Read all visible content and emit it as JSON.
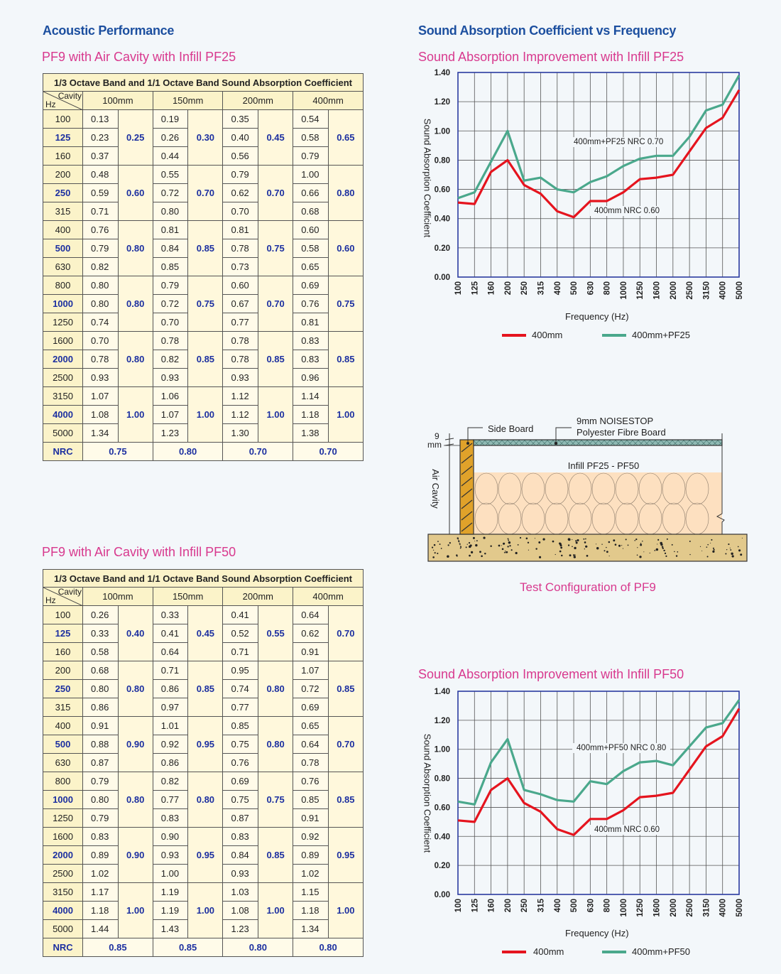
{
  "left": {
    "heading": "Acoustic Performance",
    "tables": [
      {
        "subtitle": "PF9 with Air Cavity with Infill PF25",
        "title": "1/3 Octave Band and 1/1 Octave Band Sound Absorption Coefficient",
        "corner_top": "Cavity",
        "corner_bottom": "Hz",
        "cavities": [
          "100mm",
          "150mm",
          "200mm",
          "400mm"
        ],
        "frequencies": [
          "100",
          "125",
          "160",
          "200",
          "250",
          "315",
          "400",
          "500",
          "630",
          "800",
          "1000",
          "1250",
          "1600",
          "2000",
          "2500",
          "3150",
          "4000",
          "5000"
        ],
        "third_octave": [
          [
            "0.13",
            "0.23",
            "0.37",
            "0.48",
            "0.59",
            "0.71",
            "0.76",
            "0.79",
            "0.82",
            "0.80",
            "0.80",
            "0.74",
            "0.70",
            "0.78",
            "0.93",
            "1.07",
            "1.08",
            "1.34"
          ],
          [
            "0.19",
            "0.26",
            "0.44",
            "0.55",
            "0.72",
            "0.80",
            "0.81",
            "0.84",
            "0.85",
            "0.79",
            "0.72",
            "0.70",
            "0.78",
            "0.82",
            "0.93",
            "1.06",
            "1.07",
            "1.23"
          ],
          [
            "0.35",
            "0.40",
            "0.56",
            "0.79",
            "0.62",
            "0.70",
            "0.81",
            "0.78",
            "0.73",
            "0.60",
            "0.67",
            "0.77",
            "0.78",
            "0.78",
            "0.93",
            "1.12",
            "1.12",
            "1.30"
          ],
          [
            "0.54",
            "0.58",
            "0.79",
            "1.00",
            "0.66",
            "0.68",
            "0.60",
            "0.58",
            "0.65",
            "0.69",
            "0.76",
            "0.81",
            "0.83",
            "0.83",
            "0.96",
            "1.14",
            "1.18",
            "1.38"
          ]
        ],
        "octave": [
          [
            "0.25",
            "0.60",
            "0.80",
            "0.80",
            "0.80",
            "1.00"
          ],
          [
            "0.30",
            "0.70",
            "0.85",
            "0.75",
            "0.85",
            "1.00"
          ],
          [
            "0.45",
            "0.70",
            "0.75",
            "0.70",
            "0.85",
            "1.00"
          ],
          [
            "0.65",
            "0.80",
            "0.60",
            "0.75",
            "0.85",
            "1.00"
          ]
        ],
        "nrc_label": "NRC",
        "nrc": [
          "0.75",
          "0.80",
          "0.70",
          "0.70"
        ]
      },
      {
        "subtitle": "PF9 with Air Cavity with Infill PF50",
        "title": "1/3 Octave Band and 1/1 Octave Band Sound Absorption Coefficient",
        "corner_top": "Cavity",
        "corner_bottom": "Hz",
        "cavities": [
          "100mm",
          "150mm",
          "200mm",
          "400mm"
        ],
        "frequencies": [
          "100",
          "125",
          "160",
          "200",
          "250",
          "315",
          "400",
          "500",
          "630",
          "800",
          "1000",
          "1250",
          "1600",
          "2000",
          "2500",
          "3150",
          "4000",
          "5000"
        ],
        "third_octave": [
          [
            "0.26",
            "0.33",
            "0.58",
            "0.68",
            "0.80",
            "0.86",
            "0.91",
            "0.88",
            "0.87",
            "0.79",
            "0.80",
            "0.79",
            "0.83",
            "0.89",
            "1.02",
            "1.17",
            "1.18",
            "1.44"
          ],
          [
            "0.33",
            "0.41",
            "0.64",
            "0.71",
            "0.86",
            "0.97",
            "1.01",
            "0.92",
            "0.86",
            "0.82",
            "0.77",
            "0.83",
            "0.90",
            "0.93",
            "1.00",
            "1.19",
            "1.19",
            "1.43"
          ],
          [
            "0.41",
            "0.52",
            "0.71",
            "0.95",
            "0.74",
            "0.77",
            "0.85",
            "0.75",
            "0.76",
            "0.69",
            "0.75",
            "0.87",
            "0.83",
            "0.84",
            "0.93",
            "1.03",
            "1.08",
            "1.23"
          ],
          [
            "0.64",
            "0.62",
            "0.91",
            "1.07",
            "0.72",
            "0.69",
            "0.65",
            "0.64",
            "0.78",
            "0.76",
            "0.85",
            "0.91",
            "0.92",
            "0.89",
            "1.02",
            "1.15",
            "1.18",
            "1.34"
          ]
        ],
        "octave": [
          [
            "0.40",
            "0.80",
            "0.90",
            "0.80",
            "0.90",
            "1.00"
          ],
          [
            "0.45",
            "0.85",
            "0.95",
            "0.80",
            "0.95",
            "1.00"
          ],
          [
            "0.55",
            "0.80",
            "0.80",
            "0.75",
            "0.85",
            "1.00"
          ],
          [
            "0.70",
            "0.85",
            "0.70",
            "0.85",
            "0.95",
            "1.00"
          ]
        ],
        "nrc_label": "NRC",
        "nrc": [
          "0.85",
          "0.85",
          "0.80",
          "0.80"
        ]
      }
    ]
  },
  "right": {
    "heading": "Sound Absorption Coefficient vs Frequency",
    "diagram": {
      "side_board": "Side Board",
      "board_line1": "9mm NOISESTOP",
      "board_line2": "Polyester Fibre Board",
      "thickness_value": "9",
      "thickness_unit": "mm",
      "air_cavity": "Air Cavity",
      "infill": "Infill PF25 - PF50",
      "caption": "Test Configuration of PF9"
    }
  },
  "colors": {
    "red": "#e5141e",
    "green": "#4aa88c",
    "frame": "#2a3aa0",
    "pink": "#d8398e",
    "blue": "#1c4f9f"
  },
  "chart_data": [
    {
      "type": "line",
      "title": "Sound Absorption Improvement with Infill PF25",
      "xlabel": "Frequency (Hz)",
      "ylabel": "Sound Absorption Coefficient",
      "categories": [
        "100",
        "125",
        "160",
        "200",
        "250",
        "315",
        "400",
        "500",
        "630",
        "800",
        "1000",
        "1250",
        "1600",
        "2000",
        "2500",
        "3150",
        "4000",
        "5000"
      ],
      "ylim": [
        0,
        1.4
      ],
      "yticks": [
        "0.00",
        "0.20",
        "0.40",
        "0.60",
        "0.80",
        "1.00",
        "1.20",
        "1.40"
      ],
      "grid": true,
      "legend": "bottom",
      "series": [
        {
          "name": "400mm",
          "color": "#e5141e",
          "values": [
            0.51,
            0.5,
            0.72,
            0.8,
            0.63,
            0.57,
            0.45,
            0.41,
            0.52,
            0.52,
            0.58,
            0.67,
            0.68,
            0.7,
            0.86,
            1.02,
            1.09,
            1.28
          ]
        },
        {
          "name": "400mm+PF25",
          "color": "#4aa88c",
          "values": [
            0.54,
            0.58,
            0.79,
            1.0,
            0.66,
            0.68,
            0.6,
            0.58,
            0.65,
            0.69,
            0.76,
            0.81,
            0.83,
            0.83,
            0.96,
            1.14,
            1.18,
            1.38
          ]
        }
      ],
      "annotations": [
        "400mm+PF25  NRC 0.70",
        "400mm  NRC 0.60"
      ]
    },
    {
      "type": "line",
      "title": "Sound Absorption Improvement with Infill PF50",
      "xlabel": "Frequency (Hz)",
      "ylabel": "Sound Absorption Coefficient",
      "categories": [
        "100",
        "125",
        "160",
        "200",
        "250",
        "315",
        "400",
        "500",
        "630",
        "800",
        "1000",
        "1250",
        "1600",
        "2000",
        "2500",
        "3150",
        "4000",
        "5000"
      ],
      "ylim": [
        0,
        1.4
      ],
      "yticks": [
        "0.00",
        "0.20",
        "0.40",
        "0.60",
        "0.80",
        "1.00",
        "1.20",
        "1.40"
      ],
      "grid": true,
      "legend": "bottom",
      "series": [
        {
          "name": "400mm",
          "color": "#e5141e",
          "values": [
            0.51,
            0.5,
            0.72,
            0.8,
            0.63,
            0.57,
            0.45,
            0.41,
            0.52,
            0.52,
            0.58,
            0.67,
            0.68,
            0.7,
            0.86,
            1.02,
            1.09,
            1.28
          ]
        },
        {
          "name": "400mm+PF50",
          "color": "#4aa88c",
          "values": [
            0.64,
            0.62,
            0.91,
            1.07,
            0.72,
            0.69,
            0.65,
            0.64,
            0.78,
            0.76,
            0.85,
            0.91,
            0.92,
            0.89,
            1.02,
            1.15,
            1.18,
            1.34
          ]
        }
      ],
      "annotations": [
        "400mm+PF50  NRC 0.80",
        "400mm  NRC 0.60"
      ]
    }
  ]
}
